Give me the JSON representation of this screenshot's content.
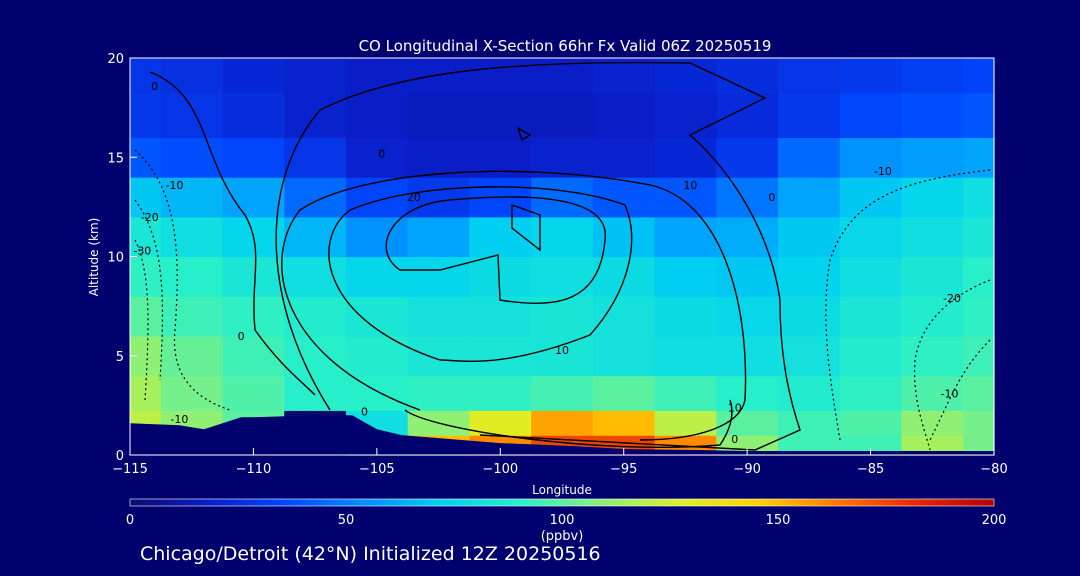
{
  "chart_data": {
    "type": "heatmap",
    "title": "CO Longitudinal X-Section 66hr  Fx Valid 06Z 20250519",
    "xlabel": "Longitude",
    "ylabel": "Altitude (km)",
    "xlim": [
      -115,
      -80
    ],
    "ylim": [
      0,
      20
    ],
    "x_ticks": [
      -115,
      -110,
      -105,
      -100,
      -95,
      -90,
      -85,
      -80
    ],
    "x_tick_labels": [
      "−115",
      "−110",
      "−105",
      "−100",
      "−95",
      "−90",
      "−85",
      "−80"
    ],
    "y_ticks": [
      0,
      5,
      10,
      15,
      20
    ],
    "y_tick_labels": [
      "0",
      "5",
      "10",
      "15",
      "20"
    ],
    "colorbar": {
      "min": 0,
      "max": 200,
      "ticks": [
        0,
        50,
        100,
        150,
        200
      ],
      "tick_labels": [
        "0",
        "50",
        "100",
        "150",
        "200"
      ],
      "unit": "(ppbv)",
      "colors": [
        "#0a0a6e",
        "#0a1ec8",
        "#0048ff",
        "#0090ff",
        "#00d2f0",
        "#28f0c8",
        "#8cf078",
        "#dcf028",
        "#ffd200",
        "#ff7800",
        "#e62800",
        "#b40000"
      ]
    },
    "field": {
      "x": [
        -115,
        -112.5,
        -110,
        -107.5,
        -105,
        -102.5,
        -100,
        -97.5,
        -95,
        -92.5,
        -90,
        -87.5,
        -85,
        -82.5,
        -80
      ],
      "z": [
        0.5,
        1.5,
        3,
        5,
        7,
        9,
        11,
        13,
        15,
        17,
        19.5
      ],
      "co_ppbv": [
        [
          0,
          0,
          0,
          0,
          75,
          150,
          160,
          175,
          175,
          160,
          110,
          95,
          95,
          115,
          105
        ],
        [
          120,
          110,
          100,
          0,
          80,
          110,
          130,
          155,
          150,
          120,
          100,
          95,
          98,
          110,
          105
        ],
        [
          115,
          105,
          98,
          90,
          90,
          92,
          92,
          96,
          100,
          95,
          90,
          88,
          92,
          98,
          100
        ],
        [
          110,
          102,
          95,
          90,
          88,
          85,
          85,
          84,
          82,
          80,
          80,
          82,
          88,
          92,
          95
        ],
        [
          100,
          95,
          92,
          88,
          85,
          82,
          82,
          84,
          82,
          78,
          76,
          78,
          85,
          88,
          92
        ],
        [
          92,
          90,
          85,
          80,
          75,
          75,
          78,
          80,
          78,
          72,
          70,
          74,
          80,
          85,
          90
        ],
        [
          85,
          80,
          75,
          65,
          55,
          60,
          72,
          75,
          68,
          60,
          62,
          70,
          76,
          80,
          85
        ],
        [
          70,
          65,
          60,
          45,
          35,
          30,
          35,
          45,
          40,
          40,
          48,
          60,
          70,
          75,
          80
        ],
        [
          40,
          38,
          35,
          28,
          20,
          18,
          18,
          20,
          20,
          22,
          30,
          45,
          55,
          58,
          60
        ],
        [
          30,
          28,
          25,
          20,
          18,
          16,
          16,
          16,
          18,
          20,
          24,
          30,
          35,
          38,
          40
        ],
        [
          28,
          26,
          22,
          20,
          18,
          18,
          18,
          18,
          20,
          22,
          25,
          28,
          30,
          32,
          34
        ]
      ]
    },
    "terrain_km": {
      "lon": [
        -115,
        -113,
        -112,
        -110.5,
        -110,
        -107.5,
        -106,
        -105,
        -104,
        -103,
        -100,
        -97,
        -95,
        -92,
        -90,
        -85,
        -80
      ],
      "alt": [
        1.6,
        1.5,
        1.3,
        1.9,
        1.9,
        2.0,
        2.0,
        1.3,
        1.0,
        0.9,
        0.6,
        0.45,
        0.3,
        0.25,
        0.2,
        0.2,
        0.2
      ]
    },
    "contour_labels": [
      {
        "text": "0",
        "lon": -114,
        "alt": 18.4
      },
      {
        "text": "0",
        "lon": -110.5,
        "alt": 5.8
      },
      {
        "text": "0",
        "lon": -105.5,
        "alt": 2.0
      },
      {
        "text": "0",
        "lon": -104.8,
        "alt": 15.0
      },
      {
        "text": "0",
        "lon": -89,
        "alt": 12.8
      },
      {
        "text": "0",
        "lon": -90.5,
        "alt": 0.6
      },
      {
        "text": "10",
        "lon": -97.5,
        "alt": 5.1
      },
      {
        "text": "10",
        "lon": -92.3,
        "alt": 13.4
      },
      {
        "text": "10",
        "lon": -90.5,
        "alt": 2.2
      },
      {
        "text": "20",
        "lon": -103.5,
        "alt": 12.8
      },
      {
        "text": "-10",
        "lon": -113.2,
        "alt": 13.4
      },
      {
        "text": "-20",
        "lon": -114.2,
        "alt": 11.8
      },
      {
        "text": "-30",
        "lon": -114.5,
        "alt": 10.1
      },
      {
        "text": "-10",
        "lon": -113,
        "alt": 1.6
      },
      {
        "text": "-10",
        "lon": -84.5,
        "alt": 14.1
      },
      {
        "text": "-20",
        "lon": -81.7,
        "alt": 7.7
      },
      {
        "text": "-10",
        "lon": -81.8,
        "alt": 2.9
      }
    ]
  },
  "footer": "Chicago/Detroit (42°N) Initialized 12Z 20250516"
}
